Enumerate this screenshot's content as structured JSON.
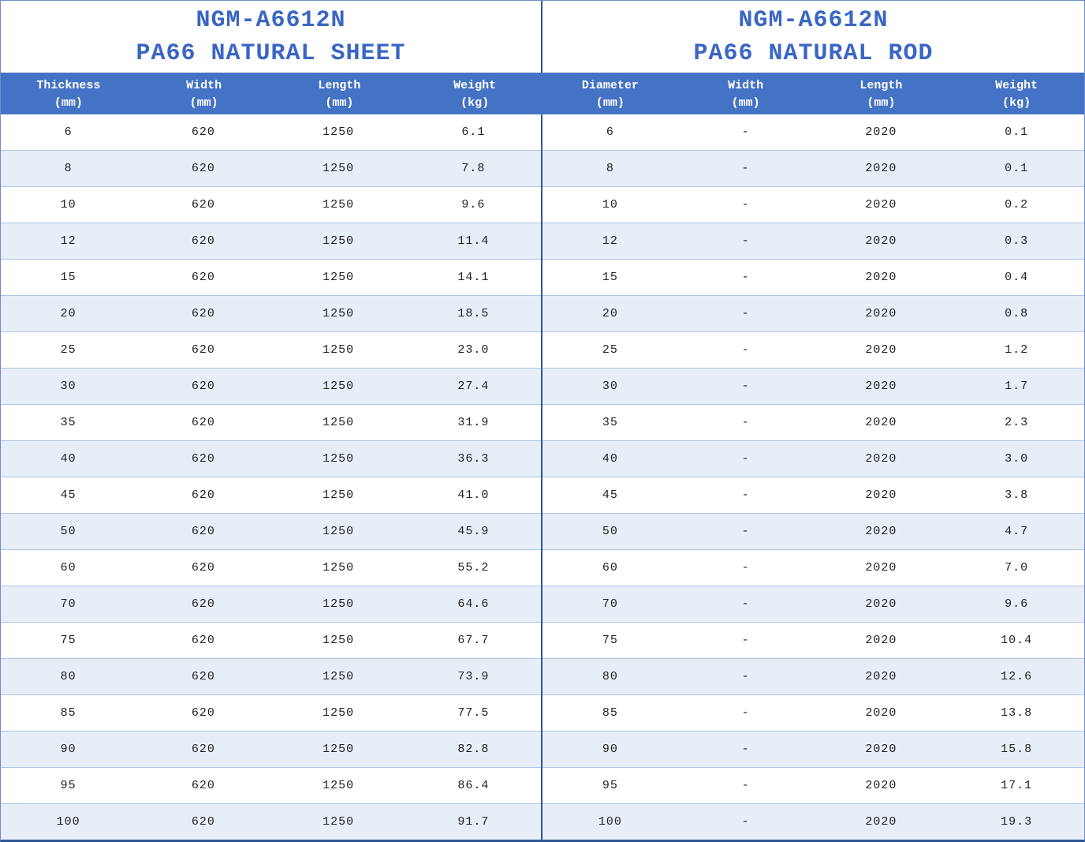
{
  "colors": {
    "header_bg": "#4472C4",
    "title_text": "#3A66C4",
    "header_text": "#FFFFFF",
    "row_bg": "#FFFFFF",
    "row_alt_bg": "#E8EEF8",
    "row_line": "#AFC4E8",
    "divider": "#2F5597",
    "outer_border": "#6B8EC9",
    "cell_text": "#1F1F1F"
  },
  "tables": [
    {
      "title_line1": "NGM-A6612N",
      "title_line2": "PA66 NATURAL SHEET",
      "columns": [
        {
          "label": "Thickness",
          "unit": "(mm)"
        },
        {
          "label": "Width",
          "unit": "(mm)"
        },
        {
          "label": "Length",
          "unit": "(mm)"
        },
        {
          "label": "Weight",
          "unit": "(kg)"
        }
      ],
      "rows": [
        [
          "6",
          "620",
          "1250",
          "6.1"
        ],
        [
          "8",
          "620",
          "1250",
          "7.8"
        ],
        [
          "10",
          "620",
          "1250",
          "9.6"
        ],
        [
          "12",
          "620",
          "1250",
          "11.4"
        ],
        [
          "15",
          "620",
          "1250",
          "14.1"
        ],
        [
          "20",
          "620",
          "1250",
          "18.5"
        ],
        [
          "25",
          "620",
          "1250",
          "23.0"
        ],
        [
          "30",
          "620",
          "1250",
          "27.4"
        ],
        [
          "35",
          "620",
          "1250",
          "31.9"
        ],
        [
          "40",
          "620",
          "1250",
          "36.3"
        ],
        [
          "45",
          "620",
          "1250",
          "41.0"
        ],
        [
          "50",
          "620",
          "1250",
          "45.9"
        ],
        [
          "60",
          "620",
          "1250",
          "55.2"
        ],
        [
          "70",
          "620",
          "1250",
          "64.6"
        ],
        [
          "75",
          "620",
          "1250",
          "67.7"
        ],
        [
          "80",
          "620",
          "1250",
          "73.9"
        ],
        [
          "85",
          "620",
          "1250",
          "77.5"
        ],
        [
          "90",
          "620",
          "1250",
          "82.8"
        ],
        [
          "95",
          "620",
          "1250",
          "86.4"
        ],
        [
          "100",
          "620",
          "1250",
          "91.7"
        ]
      ]
    },
    {
      "title_line1": "NGM-A6612N",
      "title_line2": "PA66 NATURAL ROD",
      "columns": [
        {
          "label": "Diameter",
          "unit": "(mm)"
        },
        {
          "label": "Width",
          "unit": "(mm)"
        },
        {
          "label": "Length",
          "unit": "(mm)"
        },
        {
          "label": "Weight",
          "unit": "(kg)"
        }
      ],
      "rows": [
        [
          "6",
          "-",
          "2020",
          "0.1"
        ],
        [
          "8",
          "-",
          "2020",
          "0.1"
        ],
        [
          "10",
          "-",
          "2020",
          "0.2"
        ],
        [
          "12",
          "-",
          "2020",
          "0.3"
        ],
        [
          "15",
          "-",
          "2020",
          "0.4"
        ],
        [
          "20",
          "-",
          "2020",
          "0.8"
        ],
        [
          "25",
          "-",
          "2020",
          "1.2"
        ],
        [
          "30",
          "-",
          "2020",
          "1.7"
        ],
        [
          "35",
          "-",
          "2020",
          "2.3"
        ],
        [
          "40",
          "-",
          "2020",
          "3.0"
        ],
        [
          "45",
          "-",
          "2020",
          "3.8"
        ],
        [
          "50",
          "-",
          "2020",
          "4.7"
        ],
        [
          "60",
          "-",
          "2020",
          "7.0"
        ],
        [
          "70",
          "-",
          "2020",
          "9.6"
        ],
        [
          "75",
          "-",
          "2020",
          "10.4"
        ],
        [
          "80",
          "-",
          "2020",
          "12.6"
        ],
        [
          "85",
          "-",
          "2020",
          "13.8"
        ],
        [
          "90",
          "-",
          "2020",
          "15.8"
        ],
        [
          "95",
          "-",
          "2020",
          "17.1"
        ],
        [
          "100",
          "-",
          "2020",
          "19.3"
        ]
      ]
    }
  ]
}
